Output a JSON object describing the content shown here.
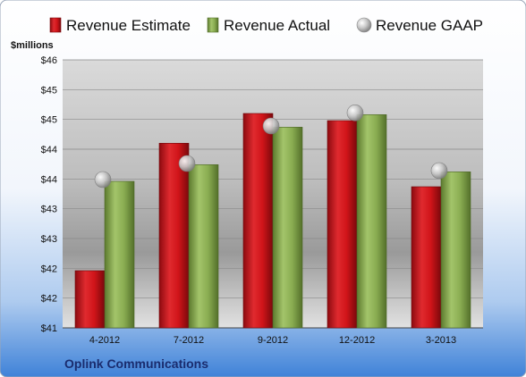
{
  "chart_data": {
    "type": "bar",
    "categories": [
      "4-2012",
      "7-2012",
      "9-2012",
      "12-2012",
      "3-2013"
    ],
    "series": [
      {
        "name": "Revenue Estimate",
        "values": [
          41.96,
          44.1,
          44.6,
          44.48,
          43.37
        ],
        "color": "#d8141c",
        "style": "bar"
      },
      {
        "name": "Revenue Actual",
        "values": [
          43.46,
          43.74,
          44.37,
          44.58,
          43.62
        ],
        "color": "#84ab4a",
        "style": "bar"
      },
      {
        "name": "Revenue GAAP",
        "values": [
          43.49,
          43.76,
          44.39,
          44.61,
          43.64
        ],
        "color": "#b8b8b8",
        "style": "marker"
      }
    ],
    "y_tick_labels": [
      "$41",
      "$42",
      "$42",
      "$43",
      "$43",
      "$44",
      "$44",
      "$45",
      "$45",
      "$46"
    ],
    "ylim": [
      41,
      45.5
    ],
    "ylabel": "$millions",
    "company": "Oplink Communications",
    "legend_position": "top",
    "grid": true
  }
}
